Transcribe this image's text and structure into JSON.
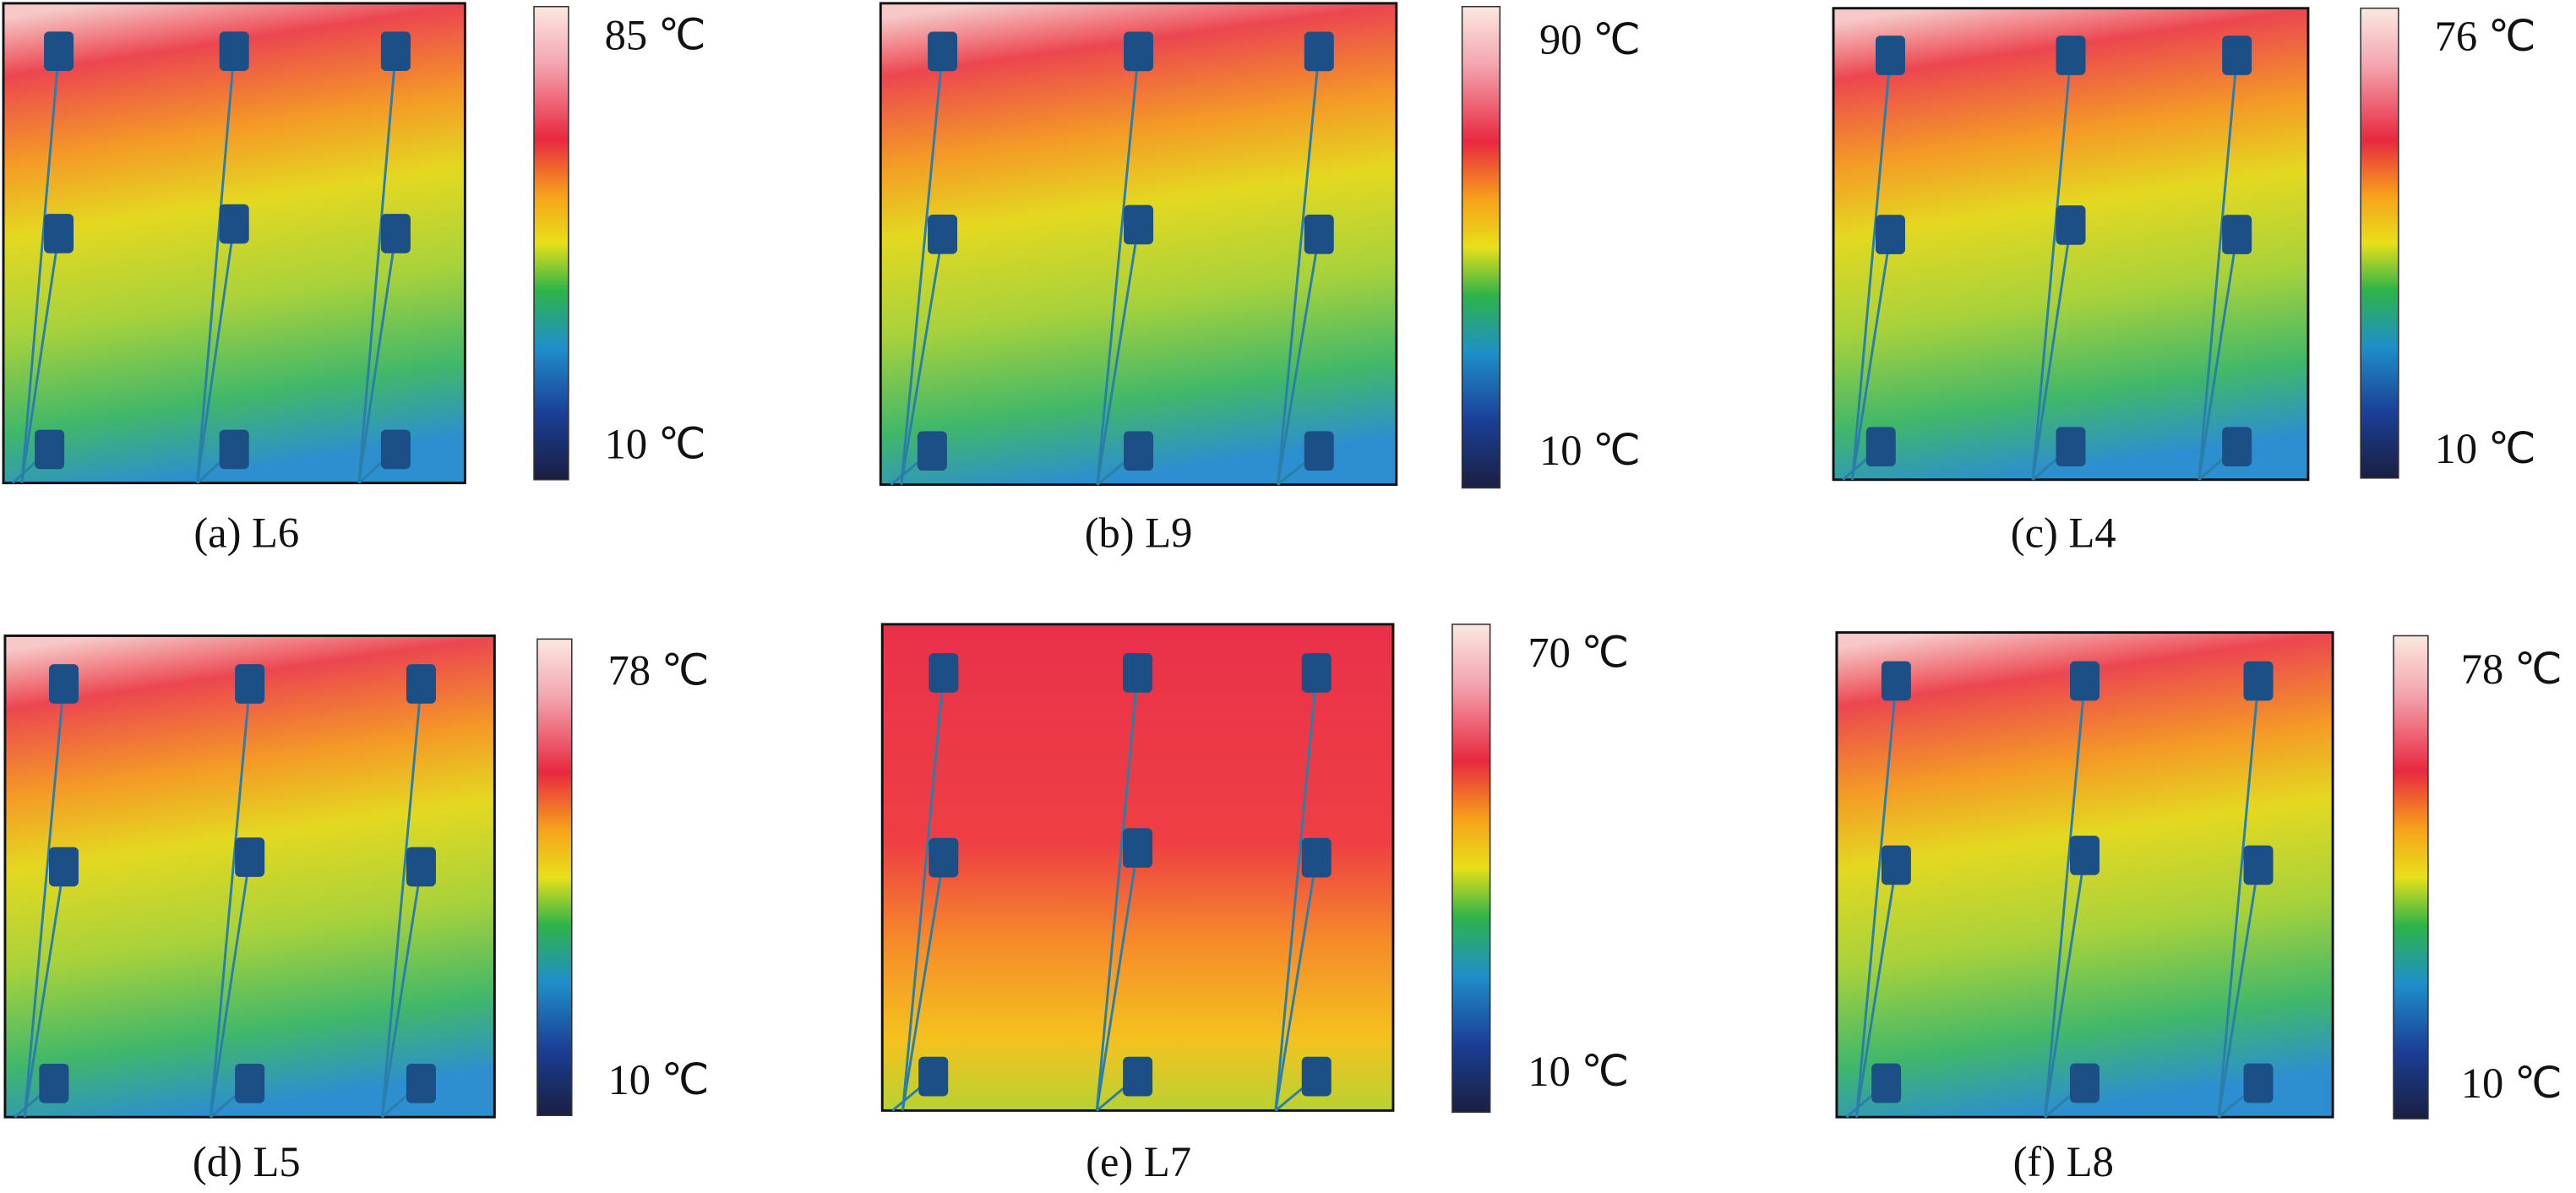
{
  "panels": [
    {
      "caption": "(a) L6",
      "max_label": "85 ℃",
      "min_label": "10 ℃"
    },
    {
      "caption": "(b) L9",
      "max_label": "90 ℃",
      "min_label": "10 ℃"
    },
    {
      "caption": "(c) L4",
      "max_label": "76 ℃",
      "min_label": "10 ℃"
    },
    {
      "caption": "(d) L5",
      "max_label": "78 ℃",
      "min_label": "10 ℃"
    },
    {
      "caption": "(e) L7",
      "max_label": "70 ℃",
      "min_label": "10 ℃"
    },
    {
      "caption": "(f) L8",
      "max_label": "78 ℃",
      "min_label": "10 ℃"
    }
  ]
}
